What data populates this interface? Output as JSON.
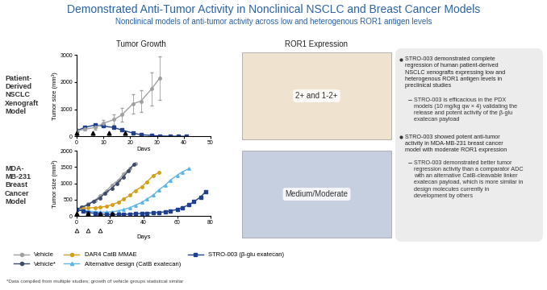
{
  "header": {
    "title": "Demonstrated Anti-Tumor Activity in Nonclinical NSCLC and Breast Cancer Models",
    "subtitle": "Nonclinical models of anti-tumor activity across low and heterogenous ROR1 antigen levels"
  },
  "columns": [
    "Tumor Growth",
    "ROR1 Expression"
  ],
  "row_labels": [
    "Patient-\nDerived\nNSCLC\nXenograft\nModel",
    "MDA-\nMB-231\nBreast\nCancer\nModel"
  ],
  "image_labels": [
    "2+ and 1-2+",
    "Medium/Moderate"
  ],
  "chart_data": [
    {
      "type": "line",
      "xlabel": "Days",
      "ylabel": "Tumor size (mm³)",
      "xlim": [
        0,
        50
      ],
      "xticks": [
        0,
        10,
        20,
        30,
        40,
        50
      ],
      "ylim": [
        0,
        3000
      ],
      "yticks": [
        0,
        1000,
        2000,
        3000
      ],
      "dose_days": [
        0,
        6,
        12,
        18
      ],
      "series": [
        {
          "name": "Vehicle",
          "color": "#a0a0a0",
          "marker": "circle",
          "x": [
            0,
            3,
            7,
            10,
            14,
            17,
            21,
            24,
            28,
            31
          ],
          "values": [
            200,
            260,
            330,
            480,
            620,
            800,
            1200,
            1300,
            1750,
            2150
          ],
          "errors": [
            30,
            50,
            80,
            120,
            200,
            250,
            350,
            400,
            600,
            800
          ]
        },
        {
          "name": "STRO-003 (β-glu exatecan)",
          "color": "#1f3f8f",
          "marker": "square",
          "x": [
            0,
            3,
            7,
            10,
            14,
            17,
            21,
            24,
            28,
            31,
            35,
            38,
            41
          ],
          "values": [
            200,
            330,
            420,
            380,
            320,
            230,
            120,
            60,
            30,
            10,
            5,
            0,
            0
          ]
        }
      ]
    },
    {
      "type": "line",
      "xlabel": "Days",
      "ylabel": "Tumor size (mm³)",
      "xlim": [
        0,
        80
      ],
      "xticks": [
        0,
        20,
        40,
        60,
        80
      ],
      "ylim": [
        0,
        2000
      ],
      "yticks": [
        0,
        500,
        1000,
        1500,
        2000
      ],
      "dose_days": [
        0,
        7,
        14,
        21
      ],
      "comparator_dose_days": [
        0,
        7,
        14
      ],
      "legend": "lower left",
      "series": [
        {
          "name": "Vehicle",
          "color": "#a0a0a0",
          "marker": "circle",
          "x": [
            0,
            4,
            7,
            11,
            14,
            18,
            21,
            25,
            28,
            32,
            35
          ],
          "values": [
            200,
            280,
            380,
            480,
            620,
            780,
            950,
            1100,
            1300,
            1450,
            1620
          ]
        },
        {
          "name": "Vehicle*",
          "color": "#3d4a6b",
          "marker": "circle",
          "x": [
            0,
            3,
            7,
            10,
            14,
            17,
            21,
            24,
            28,
            31,
            34
          ],
          "values": [
            200,
            270,
            350,
            450,
            560,
            700,
            850,
            1000,
            1200,
            1400,
            1580
          ]
        },
        {
          "name": "DAR4 CatB MMAE",
          "color": "#d4a017",
          "marker": "circle",
          "x": [
            0,
            4,
            7,
            11,
            14,
            18,
            21,
            25,
            28,
            32,
            35,
            39,
            42,
            46,
            49
          ],
          "values": [
            200,
            230,
            250,
            260,
            270,
            300,
            350,
            420,
            520,
            640,
            780,
            900,
            1050,
            1250,
            1330
          ]
        },
        {
          "name": "Alternative design (CatB exatecan)",
          "color": "#5bb5e8",
          "marker": "triangle",
          "x": [
            0,
            4,
            7,
            11,
            14,
            18,
            21,
            25,
            28,
            32,
            35,
            39,
            42,
            46,
            49,
            53,
            56,
            60,
            63,
            67
          ],
          "values": [
            200,
            180,
            150,
            130,
            120,
            120,
            130,
            160,
            200,
            260,
            330,
            420,
            520,
            650,
            800,
            950,
            1100,
            1250,
            1350,
            1450
          ]
        },
        {
          "name": "STRO-003 (β-glu exatecan)",
          "color": "#1f3f8f",
          "marker": "square",
          "x": [
            0,
            4,
            7,
            11,
            14,
            18,
            21,
            25,
            28,
            32,
            35,
            39,
            42,
            46,
            49,
            53,
            56,
            60,
            63,
            67,
            70,
            74,
            77
          ],
          "values": [
            200,
            150,
            110,
            80,
            60,
            50,
            50,
            50,
            55,
            60,
            70,
            80,
            90,
            100,
            110,
            130,
            160,
            200,
            260,
            340,
            440,
            580,
            750
          ]
        }
      ]
    }
  ],
  "bullets": [
    {
      "text": "STRO-003 demonstrated complete\nregression of human patient-derived\nNSCLC xenografts expressing low and\nheterogenous ROR1 antigen levels in\npreclinical studies",
      "sub": "STRO-003 is efficacious in the PDX\nmodels (10 mg/kg qw × 4) validating the\nrelease and potent activity of the β-glu\nexatecan payload"
    },
    {
      "text": "STRO-003 showed potent anti-tumor\nactivity in MDA-MB-231 breast cancer\nmodel with moderate ROR1 expression",
      "sub": "STRO-003 demonstrated better tumor\nregression activity than a comparator ADC\nwith an alternative CatB-cleavable linker\nexatecan payload, which is more similar in\ndesign molecules currently in\ndevelopment by others"
    }
  ],
  "footnote": "*Data compiled from multiple studies; growth of vehicle groups statistical similar"
}
